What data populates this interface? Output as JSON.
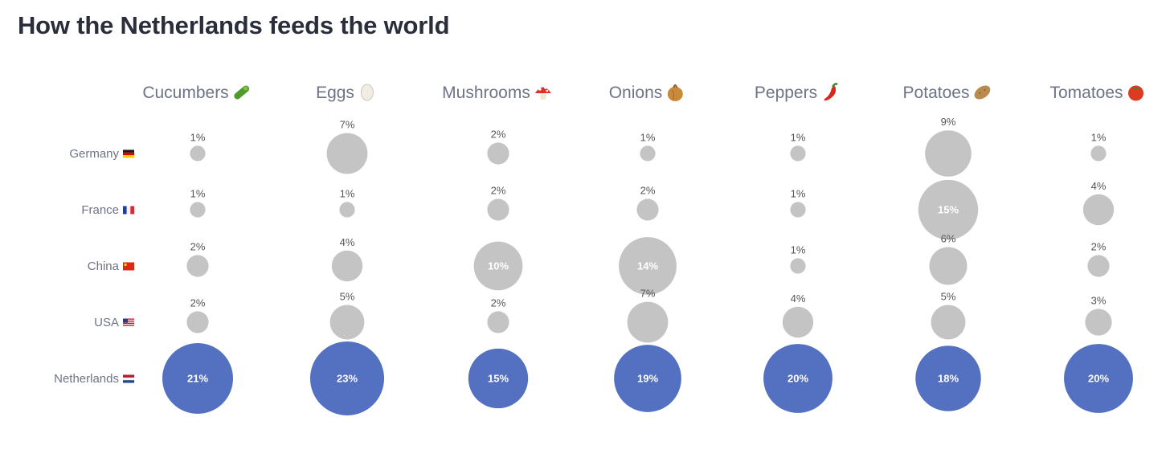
{
  "title": "How the Netherlands feeds the world",
  "colors": {
    "highlight": "#5470c0",
    "other": "#c4c4c4",
    "title": "#2a2d3a",
    "label": "#6e7385"
  },
  "chart_data": {
    "type": "bubble-grid",
    "title": "How the Netherlands feeds the world",
    "columns": [
      {
        "name": "Cucumbers",
        "icon": "cucumber-icon"
      },
      {
        "name": "Eggs",
        "icon": "egg-icon"
      },
      {
        "name": "Mushrooms",
        "icon": "mushroom-icon"
      },
      {
        "name": "Onions",
        "icon": "onion-icon"
      },
      {
        "name": "Peppers",
        "icon": "pepper-icon"
      },
      {
        "name": "Potatoes",
        "icon": "potato-icon"
      },
      {
        "name": "Tomatoes",
        "icon": "tomato-icon"
      }
    ],
    "rows": [
      {
        "name": "Germany",
        "flag": "germany-flag-icon"
      },
      {
        "name": "France",
        "flag": "france-flag-icon"
      },
      {
        "name": "China",
        "flag": "china-flag-icon"
      },
      {
        "name": "USA",
        "flag": "usa-flag-icon"
      },
      {
        "name": "Netherlands",
        "flag": "netherlands-flag-icon",
        "highlight": true
      }
    ],
    "values": [
      [
        1,
        7,
        2,
        1,
        1,
        9,
        1
      ],
      [
        1,
        1,
        2,
        2,
        1,
        15,
        4
      ],
      [
        2,
        4,
        10,
        14,
        1,
        6,
        2
      ],
      [
        2,
        5,
        2,
        7,
        4,
        5,
        3
      ],
      [
        21,
        23,
        15,
        19,
        20,
        18,
        20
      ]
    ],
    "unit": "%"
  }
}
